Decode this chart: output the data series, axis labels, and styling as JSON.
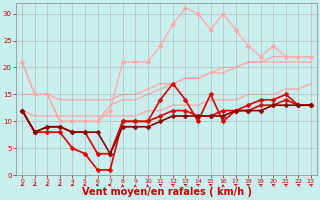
{
  "background_color": "#c8eeed",
  "grid_color": "#b0b0b0",
  "xlabel": "Vent moyen/en rafales ( km/h )",
  "xlabel_color": "#cc0000",
  "xlabel_fontsize": 7,
  "tick_label_color": "#cc0000",
  "xlim": [
    -0.5,
    23.5
  ],
  "ylim": [
    0,
    32
  ],
  "yticks": [
    0,
    5,
    10,
    15,
    20,
    25,
    30
  ],
  "xticks": [
    0,
    1,
    2,
    3,
    4,
    5,
    6,
    7,
    8,
    9,
    10,
    11,
    12,
    13,
    14,
    15,
    16,
    17,
    18,
    19,
    20,
    21,
    22,
    23
  ],
  "series": [
    {
      "x": [
        0,
        1,
        2,
        3,
        4,
        5,
        6,
        7,
        8,
        9,
        10,
        11,
        12,
        13,
        14,
        15,
        16,
        17,
        18,
        19,
        20,
        21,
        22,
        23
      ],
      "y": [
        21,
        15,
        15,
        10,
        10,
        10,
        10,
        13,
        14,
        14,
        15,
        16,
        17,
        18,
        18,
        19,
        19,
        20,
        21,
        21,
        22,
        22,
        22,
        22
      ],
      "color": "#ffaaaa",
      "linewidth": 1.0,
      "marker": null,
      "zorder": 1
    },
    {
      "x": [
        0,
        1,
        2,
        3,
        4,
        5,
        6,
        7,
        8,
        9,
        10,
        11,
        12,
        13,
        14,
        15,
        16,
        17,
        18,
        19,
        20,
        21,
        22,
        23
      ],
      "y": [
        15,
        15,
        15,
        14,
        14,
        14,
        14,
        14,
        15,
        15,
        16,
        17,
        17,
        18,
        18,
        19,
        20,
        20,
        21,
        21,
        21,
        21,
        21,
        21
      ],
      "color": "#ffaaaa",
      "linewidth": 1.0,
      "marker": null,
      "zorder": 1
    },
    {
      "x": [
        0,
        1,
        2,
        3,
        4,
        5,
        6,
        7,
        8,
        9,
        10,
        11,
        12,
        13,
        14,
        15,
        16,
        17,
        18,
        19,
        20,
        21,
        22,
        23
      ],
      "y": [
        12,
        11,
        11,
        11,
        11,
        11,
        11,
        11,
        11,
        11,
        12,
        12,
        13,
        13,
        13,
        14,
        14,
        14,
        15,
        15,
        15,
        16,
        16,
        17
      ],
      "color": "#ffaaaa",
      "linewidth": 1.0,
      "marker": null,
      "zorder": 1
    },
    {
      "x": [
        0,
        1,
        2,
        3,
        4,
        5,
        6,
        7,
        8,
        9,
        10,
        11,
        12,
        13,
        14,
        15,
        16,
        17,
        18,
        19,
        20,
        21,
        22,
        23
      ],
      "y": [
        21,
        15,
        15,
        10,
        10,
        10,
        10,
        12,
        21,
        21,
        21,
        24,
        28,
        31,
        30,
        27,
        30,
        27,
        24,
        22,
        24,
        22,
        22,
        22
      ],
      "color": "#ffaaaa",
      "linewidth": 1.0,
      "marker": "D",
      "markersize": 2.5,
      "zorder": 2
    },
    {
      "x": [
        0,
        1,
        2,
        3,
        4,
        5,
        6,
        7,
        8,
        9,
        10,
        11,
        12,
        13,
        14,
        15,
        16,
        17,
        18,
        19,
        20,
        21,
        22,
        23
      ],
      "y": [
        12,
        8,
        8,
        8,
        5,
        4,
        1,
        1,
        10,
        10,
        10,
        14,
        17,
        14,
        10,
        15,
        10,
        12,
        13,
        14,
        14,
        15,
        13,
        13
      ],
      "color": "#dd0000",
      "linewidth": 1.2,
      "marker": "D",
      "markersize": 2.5,
      "zorder": 3
    },
    {
      "x": [
        0,
        1,
        2,
        3,
        4,
        5,
        6,
        7,
        8,
        9,
        10,
        11,
        12,
        13,
        14,
        15,
        16,
        17,
        18,
        19,
        20,
        21,
        22,
        23
      ],
      "y": [
        12,
        8,
        9,
        9,
        8,
        8,
        4,
        4,
        10,
        10,
        10,
        11,
        12,
        12,
        11,
        11,
        12,
        12,
        12,
        13,
        13,
        14,
        13,
        13
      ],
      "color": "#dd0000",
      "linewidth": 1.2,
      "marker": "D",
      "markersize": 2.5,
      "zorder": 3
    },
    {
      "x": [
        0,
        1,
        2,
        3,
        4,
        5,
        6,
        7,
        8,
        9,
        10,
        11,
        12,
        13,
        14,
        15,
        16,
        17,
        18,
        19,
        20,
        21,
        22,
        23
      ],
      "y": [
        12,
        8,
        9,
        9,
        8,
        8,
        8,
        4,
        9,
        9,
        9,
        10,
        11,
        11,
        11,
        11,
        11,
        12,
        12,
        12,
        13,
        13,
        13,
        13
      ],
      "color": "#880000",
      "linewidth": 1.2,
      "marker": "D",
      "markersize": 2.5,
      "zorder": 3
    }
  ],
  "arrow_angles": [
    225,
    225,
    210,
    210,
    210,
    195,
    195,
    180,
    90,
    90,
    90,
    135,
    135,
    135,
    135,
    135,
    90,
    135,
    135,
    135,
    135,
    135,
    135,
    135
  ],
  "wind_arrow_color": "#cc0000"
}
